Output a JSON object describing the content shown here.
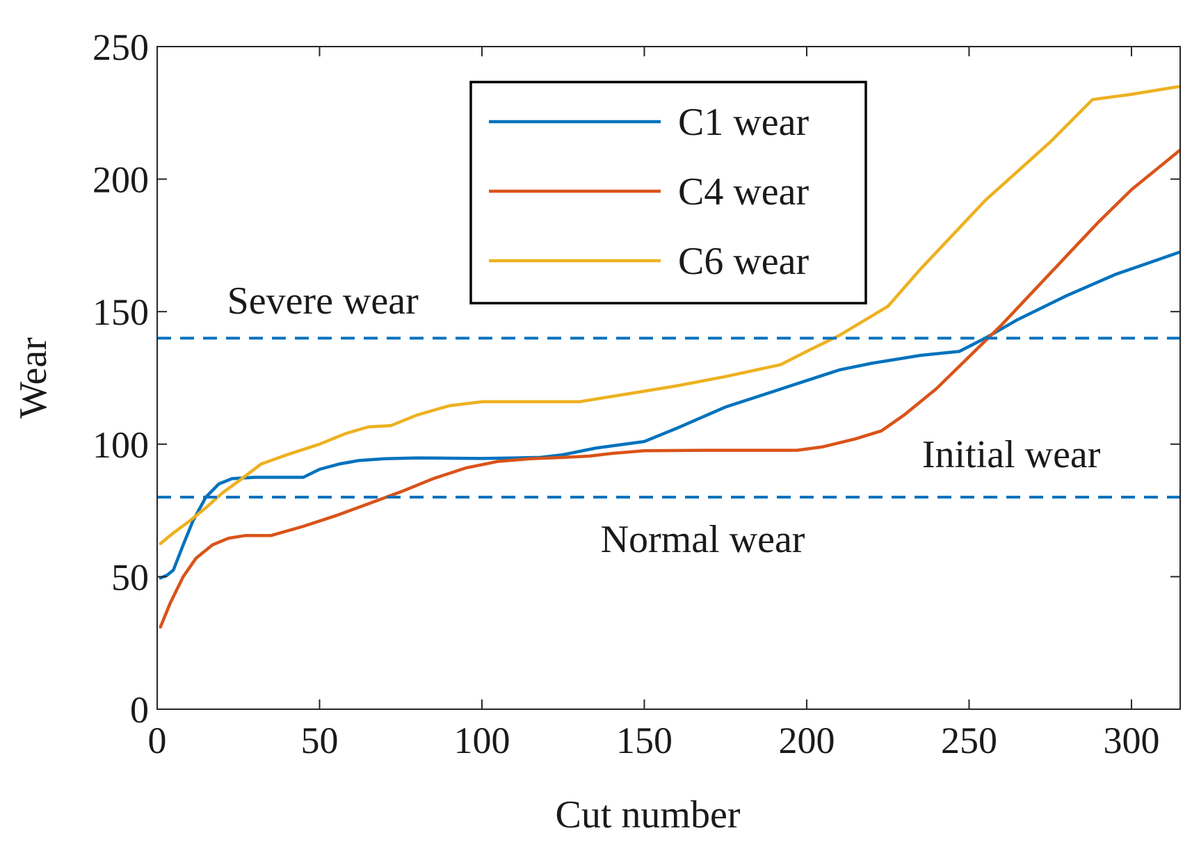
{
  "chart_data": {
    "type": "line",
    "title": "",
    "xlabel": "Cut number",
    "ylabel": "Wear",
    "xlim": [
      0,
      315
    ],
    "ylim": [
      0,
      250
    ],
    "xticks": [
      0,
      50,
      100,
      150,
      200,
      250,
      300
    ],
    "yticks": [
      0,
      50,
      100,
      150,
      200,
      250
    ],
    "grid": false,
    "legend_position": "top-center",
    "series": [
      {
        "name": "C1 wear",
        "color": "#0072BD",
        "points": [
          [
            1,
            49.5
          ],
          [
            3,
            50.5
          ],
          [
            5,
            52.5
          ],
          [
            8,
            62
          ],
          [
            11,
            71
          ],
          [
            15,
            80
          ],
          [
            19,
            85
          ],
          [
            23,
            87
          ],
          [
            30,
            87.5
          ],
          [
            40,
            87.5
          ],
          [
            45,
            87.5
          ],
          [
            50,
            90.5
          ],
          [
            56,
            92.5
          ],
          [
            62,
            93.8
          ],
          [
            70,
            94.5
          ],
          [
            80,
            94.8
          ],
          [
            90,
            94.7
          ],
          [
            100,
            94.6
          ],
          [
            110,
            94.8
          ],
          [
            118,
            95
          ],
          [
            125,
            96
          ],
          [
            135,
            98.5
          ],
          [
            150,
            101
          ],
          [
            160,
            106
          ],
          [
            175,
            114
          ],
          [
            190,
            120
          ],
          [
            200,
            124
          ],
          [
            210,
            128
          ],
          [
            220,
            130.5
          ],
          [
            235,
            133.5
          ],
          [
            247,
            135
          ],
          [
            255,
            140
          ],
          [
            265,
            147
          ],
          [
            280,
            156
          ],
          [
            295,
            164
          ],
          [
            315,
            172.5
          ]
        ]
      },
      {
        "name": "C4 wear",
        "color": "#D95319",
        "points": [
          [
            1,
            31
          ],
          [
            4,
            40
          ],
          [
            8,
            50
          ],
          [
            12,
            57
          ],
          [
            17,
            62
          ],
          [
            22,
            64.5
          ],
          [
            27,
            65.5
          ],
          [
            35,
            65.5
          ],
          [
            45,
            69
          ],
          [
            55,
            73
          ],
          [
            65,
            77.5
          ],
          [
            75,
            82
          ],
          [
            85,
            87
          ],
          [
            95,
            91
          ],
          [
            105,
            93.5
          ],
          [
            115,
            94.5
          ],
          [
            125,
            95
          ],
          [
            133,
            95.5
          ],
          [
            140,
            96.5
          ],
          [
            150,
            97.5
          ],
          [
            170,
            97.7
          ],
          [
            185,
            97.7
          ],
          [
            197,
            97.7
          ],
          [
            205,
            99
          ],
          [
            215,
            102
          ],
          [
            223,
            105
          ],
          [
            230,
            111
          ],
          [
            240,
            121
          ],
          [
            250,
            133
          ],
          [
            260,
            145
          ],
          [
            270,
            158
          ],
          [
            280,
            171
          ],
          [
            290,
            184
          ],
          [
            300,
            196
          ],
          [
            315,
            211
          ]
        ]
      },
      {
        "name": "C6 wear",
        "color": "#EDB120",
        "points": [
          [
            1,
            62.5
          ],
          [
            5,
            66.5
          ],
          [
            10,
            71
          ],
          [
            15,
            76
          ],
          [
            20,
            81.5
          ],
          [
            25,
            86
          ],
          [
            32,
            92.5
          ],
          [
            40,
            96
          ],
          [
            50,
            100
          ],
          [
            58,
            104
          ],
          [
            65,
            106.5
          ],
          [
            72,
            107
          ],
          [
            80,
            111
          ],
          [
            90,
            114.5
          ],
          [
            100,
            116
          ],
          [
            110,
            116
          ],
          [
            120,
            116
          ],
          [
            130,
            116
          ],
          [
            140,
            118
          ],
          [
            150,
            120
          ],
          [
            160,
            122
          ],
          [
            175,
            125.5
          ],
          [
            192,
            130
          ],
          [
            200,
            135
          ],
          [
            210,
            141
          ],
          [
            225,
            152
          ],
          [
            235,
            166
          ],
          [
            245,
            179
          ],
          [
            255,
            192
          ],
          [
            265,
            203
          ],
          [
            275,
            214
          ],
          [
            288,
            230
          ],
          [
            300,
            232
          ],
          [
            315,
            235
          ]
        ]
      }
    ],
    "reference_lines": [
      {
        "axis": "y",
        "value": 140,
        "color": "#0072BD",
        "style": "dashed"
      },
      {
        "axis": "y",
        "value": 80,
        "color": "#0072BD",
        "style": "dashed"
      }
    ],
    "annotations": [
      {
        "text": "Severe wear",
        "x": 51,
        "y": 154
      },
      {
        "text": "Initial wear",
        "x": 263,
        "y": 96
      },
      {
        "text": "Normal wear",
        "x": 168,
        "y": 64
      }
    ]
  }
}
